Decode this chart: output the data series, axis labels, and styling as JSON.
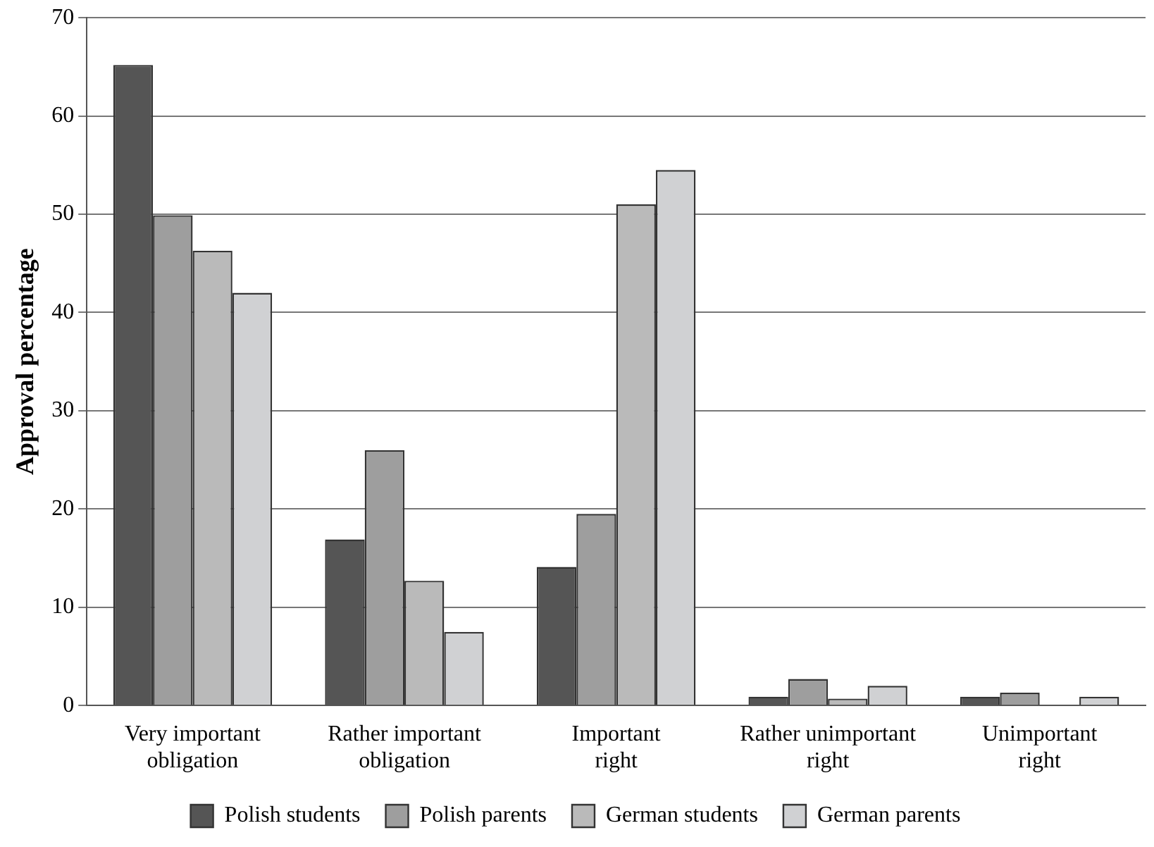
{
  "chart_data": {
    "type": "bar",
    "ylabel": "Approval percentage",
    "categories": [
      "Very important obligation",
      "Rather important obligation",
      "Important right",
      "Rather unimportant right",
      "Unimportant right"
    ],
    "series": [
      {
        "name": "Polish students",
        "color": "#555555",
        "values": [
          65.2,
          16.9,
          14.1,
          0.9,
          0.9
        ]
      },
      {
        "name": "Polish parents",
        "color": "#9e9e9e",
        "values": [
          49.9,
          26.0,
          19.5,
          2.7,
          1.3
        ]
      },
      {
        "name": "German students",
        "color": "#bababa",
        "values": [
          46.3,
          12.7,
          51.0,
          0.7,
          0
        ]
      },
      {
        "name": "German parents",
        "color": "#d0d1d3",
        "values": [
          42.0,
          7.5,
          54.5,
          2.0,
          0.9
        ]
      }
    ],
    "ylim": [
      0,
      70
    ],
    "yticks": [
      0,
      10,
      20,
      30,
      40,
      50,
      60,
      70
    ],
    "grid": "y",
    "legend": "bottom"
  }
}
